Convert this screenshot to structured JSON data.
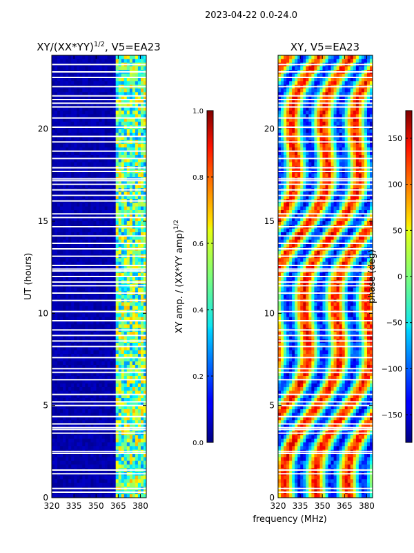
{
  "suptitle": "2023-04-22 0.0-24.0",
  "chart_data": [
    {
      "type": "heatmap",
      "title": "XY/(XX*YY)^{1/2}, V5=EA23",
      "title_main": "XY/(XX*YY)",
      "title_sup": "1/2",
      "title_tail": ", V5=EA23",
      "xlabel": "",
      "ylabel": "UT (hours)",
      "xlim": [
        320,
        384
      ],
      "ylim": [
        0,
        24
      ],
      "xticks": [
        320,
        335,
        350,
        365,
        380
      ],
      "yticks": [
        0,
        5,
        10,
        15,
        20
      ],
      "colormap": "jet",
      "colorbar": {
        "label": "XY amp. / (XX*YY amp)^{1/2}",
        "label_main": "XY amp. / (XX*YY amp)",
        "label_sup": "1/2",
        "vmin": 0.0,
        "vmax": 1.0,
        "ticks": [
          "0.0",
          "0.2",
          "0.4",
          "0.6",
          "0.8",
          "1.0"
        ]
      },
      "flagged_time_gaps_hours": [
        0.3,
        0.5,
        1.3,
        1.5,
        2.4,
        2.5,
        3.5,
        3.7,
        3.8,
        4.0,
        4.4,
        5.0,
        5.2,
        5.6,
        6.4,
        6.8,
        7.0,
        7.6,
        8.2,
        8.5,
        8.8,
        9.1,
        9.6,
        10.1,
        10.7,
        11.1,
        11.5,
        11.7,
        12.0,
        12.3,
        12.4,
        12.6,
        13.1,
        13.5,
        13.8,
        14.2,
        14.7,
        15.2,
        15.4,
        16.1,
        16.4,
        16.7,
        17.0,
        17.2,
        17.3,
        17.7,
        17.9,
        18.4,
        18.8,
        19.3,
        19.6,
        20.1,
        20.6,
        21.2,
        21.4,
        21.6,
        21.8,
        22.3,
        22.8,
        23.1,
        23.5
      ]
    },
    {
      "type": "heatmap",
      "title": "XY, V5=EA23",
      "xlabel": "frequency (MHz)",
      "ylabel": "",
      "xlim": [
        320,
        384
      ],
      "ylim": [
        0,
        24
      ],
      "xticks": [
        320,
        335,
        350,
        365,
        380
      ],
      "yticks": [
        0,
        5,
        10,
        15,
        20
      ],
      "colormap": "jet",
      "colorbar": {
        "label": "phase (deg)",
        "vmin": -180,
        "vmax": 180,
        "ticks": [
          "−150",
          "−100",
          "−50",
          "0",
          "50",
          "100",
          "150"
        ]
      },
      "flagged_time_gaps_hours": [
        0.3,
        0.5,
        1.3,
        1.5,
        2.4,
        2.5,
        3.5,
        3.7,
        3.8,
        4.0,
        4.4,
        5.0,
        5.2,
        5.6,
        6.4,
        6.8,
        7.0,
        7.6,
        8.2,
        8.5,
        8.8,
        9.1,
        9.6,
        10.1,
        10.7,
        11.1,
        11.5,
        11.7,
        12.0,
        12.3,
        12.4,
        12.6,
        13.1,
        13.5,
        13.8,
        14.2,
        14.7,
        15.2,
        15.4,
        16.1,
        16.4,
        16.7,
        17.0,
        17.2,
        17.3,
        17.7,
        17.9,
        18.4,
        18.8,
        19.3,
        19.6,
        20.1,
        20.6,
        21.2,
        21.4,
        21.6,
        21.8,
        22.3,
        22.8,
        23.1,
        23.5
      ]
    }
  ]
}
